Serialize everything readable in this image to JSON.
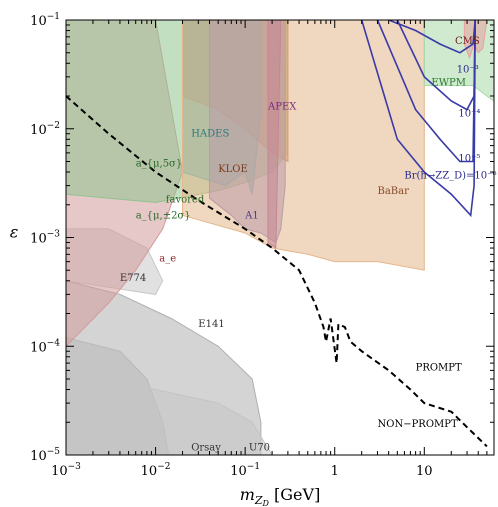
{
  "chart_data": {
    "type": "area",
    "x_scale": "log",
    "y_scale": "log",
    "xlim": [
      0.001,
      60
    ],
    "ylim": [
      1e-05,
      0.1
    ],
    "xlabel": "m_{Z_D} [GeV]",
    "xlabel_main": "m",
    "xlabel_sub": "Z",
    "xlabel_subsub": "D",
    "xlabel_unit": " [GeV]",
    "ylabel": "ε",
    "x_ticks": [
      {
        "value": 0.001,
        "base": "10",
        "exp": "−3"
      },
      {
        "value": 0.01,
        "base": "10",
        "exp": "−2"
      },
      {
        "value": 0.1,
        "base": "10",
        "exp": "−1"
      },
      {
        "value": 1,
        "base": "1",
        "exp": ""
      },
      {
        "value": 10,
        "base": "10",
        "exp": ""
      }
    ],
    "y_ticks": [
      {
        "value": 1e-05,
        "base": "10",
        "exp": "−5"
      },
      {
        "value": 0.0001,
        "base": "10",
        "exp": "−4"
      },
      {
        "value": 0.001,
        "base": "10",
        "exp": "−3"
      },
      {
        "value": 0.01,
        "base": "10",
        "exp": "−2"
      },
      {
        "value": 0.1,
        "base": "10",
        "exp": "−1"
      }
    ],
    "regions": [
      {
        "name": "E141",
        "color": "#b0b0b0",
        "points": [
          [
            0.001,
            1e-05
          ],
          [
            0.001,
            0.0004
          ],
          [
            0.004,
            0.0003
          ],
          [
            0.015,
            0.00018
          ],
          [
            0.05,
            0.0001
          ],
          [
            0.12,
            5e-05
          ],
          [
            0.15,
            2e-05
          ],
          [
            0.15,
            1e-05
          ]
        ]
      },
      {
        "name": "Orsay",
        "color": "#b8b8b8",
        "points": [
          [
            0.001,
            1e-05
          ],
          [
            0.001,
            0.00012
          ],
          [
            0.004,
            9e-05
          ],
          [
            0.008,
            5e-05
          ],
          [
            0.012,
            2e-05
          ],
          [
            0.014,
            1e-05
          ]
        ]
      },
      {
        "name": "U70",
        "color": "#c4c4c4",
        "points": [
          [
            0.001,
            1e-05
          ],
          [
            0.001,
            6e-05
          ],
          [
            0.01,
            4e-05
          ],
          [
            0.05,
            3e-05
          ],
          [
            0.12,
            2e-05
          ],
          [
            0.2,
            1e-05
          ]
        ]
      },
      {
        "name": "E774",
        "color": "#c8c8c8",
        "points": [
          [
            0.001,
            0.0004
          ],
          [
            0.001,
            0.0012
          ],
          [
            0.003,
            0.0012
          ],
          [
            0.008,
            0.0008
          ],
          [
            0.012,
            0.0004
          ],
          [
            0.01,
            0.0003
          ]
        ]
      },
      {
        "name": "a_e",
        "color": "#d49a9a",
        "points": [
          [
            0.001,
            0.0001
          ],
          [
            0.001,
            0.1
          ],
          [
            0.01,
            0.1
          ],
          [
            0.02,
            0.004
          ],
          [
            0.012,
            0.0012
          ],
          [
            0.006,
            0.0005
          ],
          [
            0.003,
            0.00025
          ]
        ]
      },
      {
        "name": "a_mu",
        "color": "#8fc48f",
        "points": [
          [
            0.001,
            0.1
          ],
          [
            0.001,
            0.0025
          ],
          [
            0.01,
            0.0021
          ],
          [
            0.05,
            0.0027
          ],
          [
            0.1,
            0.0032
          ],
          [
            0.2,
            0.004
          ],
          [
            0.3,
            0.006
          ],
          [
            0.3,
            0.1
          ]
        ]
      },
      {
        "name": "KLOE",
        "color": "#c8845a",
        "points": [
          [
            0.02,
            0.1
          ],
          [
            0.02,
            0.02
          ],
          [
            0.05,
            0.015
          ],
          [
            0.1,
            0.01
          ],
          [
            0.2,
            0.006
          ],
          [
            0.3,
            0.005
          ],
          [
            0.3,
            0.1
          ]
        ]
      },
      {
        "name": "HADES",
        "color": "#4fb8c0",
        "points": [
          [
            0.02,
            0.1
          ],
          [
            0.02,
            0.004
          ],
          [
            0.06,
            0.003
          ],
          [
            0.1,
            0.004
          ],
          [
            0.12,
            0.0025
          ],
          [
            0.15,
            0.015
          ],
          [
            0.15,
            0.1
          ]
        ]
      },
      {
        "name": "A1",
        "color": "#8a7ac8",
        "points": [
          [
            0.04,
            0.1
          ],
          [
            0.04,
            0.0023
          ],
          [
            0.07,
            0.0016
          ],
          [
            0.1,
            0.0012
          ],
          [
            0.15,
            0.0011
          ],
          [
            0.22,
            0.0009
          ],
          [
            0.25,
            0.0012
          ],
          [
            0.28,
            0.003
          ],
          [
            0.28,
            0.1
          ]
        ]
      },
      {
        "name": "APEX",
        "color": "#a04ca0",
        "points": [
          [
            0.18,
            0.1
          ],
          [
            0.18,
            0.0009
          ],
          [
            0.22,
            0.0008
          ],
          [
            0.25,
            0.1
          ]
        ]
      },
      {
        "name": "BaBar",
        "color": "#e4b68a",
        "points": [
          [
            0.02,
            0.1
          ],
          [
            0.02,
            0.0016
          ],
          [
            0.1,
            0.0011
          ],
          [
            0.2,
            0.0008
          ],
          [
            0.5,
            0.0007
          ],
          [
            1,
            0.0006
          ],
          [
            3,
            0.0006
          ],
          [
            10,
            0.0005
          ],
          [
            10,
            0.1
          ]
        ]
      },
      {
        "name": "EWPM",
        "color": "#a8d8a8",
        "points": [
          [
            10,
            0.1
          ],
          [
            10,
            0.025
          ],
          [
            20,
            0.025
          ],
          [
            35,
            0.025
          ],
          [
            50,
            0.02
          ],
          [
            60,
            0.018
          ],
          [
            60,
            0.1
          ]
        ]
      },
      {
        "name": "CMS",
        "color": "#e8a0a0",
        "points": [
          [
            28,
            0.1
          ],
          [
            28,
            0.06
          ],
          [
            32,
            0.045
          ],
          [
            36,
            0.06
          ],
          [
            40,
            0.05
          ],
          [
            45,
            0.055
          ],
          [
            50,
            0.1
          ]
        ]
      }
    ],
    "series": [
      {
        "name": "displaced-vertex-boundary",
        "color": "#000000",
        "dash": "6,4",
        "points": [
          [
            0.001,
            0.02
          ],
          [
            0.003,
            0.009
          ],
          [
            0.01,
            0.004
          ],
          [
            0.03,
            0.0022
          ],
          [
            0.1,
            0.0012
          ],
          [
            0.2,
            0.0008
          ],
          [
            0.4,
            0.0005
          ],
          [
            0.6,
            0.00025
          ],
          [
            0.75,
            0.00015
          ],
          [
            0.8,
            0.00011
          ],
          [
            0.9,
            0.00018
          ],
          [
            1.05,
            7e-05
          ],
          [
            1.1,
            0.00016
          ],
          [
            1.3,
            0.00015
          ],
          [
            1.5,
            0.00011
          ],
          [
            2,
            9e-05
          ],
          [
            4,
            6e-05
          ],
          [
            7,
            4e-05
          ],
          [
            10,
            3e-05
          ],
          [
            20,
            2.5e-05
          ],
          [
            30,
            1.8e-05
          ],
          [
            50,
            1.2e-05
          ]
        ]
      },
      {
        "name": "Br(h→Z Z_D)=10^{-3}",
        "color": "#3a3aa8",
        "points": [
          [
            4,
            0.1
          ],
          [
            8,
            0.08
          ],
          [
            15,
            0.06
          ],
          [
            25,
            0.05
          ],
          [
            35,
            0.06
          ],
          [
            37,
            0.1
          ]
        ]
      },
      {
        "name": "Br(h→Z Z_D)=10^{-4}",
        "color": "#3a3aa8",
        "points": [
          [
            5,
            0.1
          ],
          [
            10,
            0.03
          ],
          [
            20,
            0.018
          ],
          [
            30,
            0.015
          ],
          [
            36,
            0.02
          ],
          [
            37,
            0.1
          ]
        ]
      },
      {
        "name": "Br(h→Z Z_D)=10^{-5}",
        "color": "#3a3aa8",
        "points": [
          [
            3,
            0.1
          ],
          [
            8,
            0.015
          ],
          [
            15,
            0.008
          ],
          [
            25,
            0.005
          ],
          [
            35,
            0.005
          ],
          [
            37,
            0.1
          ]
        ]
      },
      {
        "name": "Br(h→Z Z_D)=10^{-6}",
        "color": "#3a3aa8",
        "points": [
          [
            2,
            0.1
          ],
          [
            5,
            0.008
          ],
          [
            10,
            0.004
          ],
          [
            20,
            0.0025
          ],
          [
            33,
            0.0016
          ],
          [
            36,
            0.003
          ],
          [
            37,
            0.1
          ]
        ]
      }
    ],
    "annotations": [
      {
        "text": "CMS",
        "x": 22,
        "y": 0.06,
        "color": "#6a1a1a"
      },
      {
        "text": "10⁻³",
        "x": 23,
        "y": 0.033,
        "color": "#2a2a8a"
      },
      {
        "text": "EWPM",
        "x": 12,
        "y": 0.025,
        "color": "#2a7a2a"
      },
      {
        "text": "10⁻⁴",
        "x": 24,
        "y": 0.013,
        "color": "#2a2a8a"
      },
      {
        "text": "APEX",
        "x": 0.18,
        "y": 0.015,
        "color": "#7a2a7a"
      },
      {
        "text": "HADES",
        "x": 0.025,
        "y": 0.0085,
        "color": "#2a7a7a"
      },
      {
        "text": "10⁻⁵",
        "x": 24,
        "y": 0.005,
        "color": "#2a2a8a"
      },
      {
        "text": "a_{μ,5σ}",
        "x": 0.006,
        "y": 0.0045,
        "color": "#2a6a2a"
      },
      {
        "text": "KLOE",
        "x": 0.05,
        "y": 0.004,
        "color": "#7a3a1a"
      },
      {
        "text": "BaBar",
        "x": 3,
        "y": 0.0025,
        "color": "#8a4a2a"
      },
      {
        "text": "Br(h→ZZ_D)=10⁻⁶",
        "x": 6,
        "y": 0.0035,
        "color": "#2a2a8a"
      },
      {
        "text": "favored",
        "x": 0.013,
        "y": 0.0021,
        "color": "#2a6a2a"
      },
      {
        "text": "a_{μ,±2σ}",
        "x": 0.006,
        "y": 0.0015,
        "color": "#2a6a2a"
      },
      {
        "text": "A1",
        "x": 0.1,
        "y": 0.0015,
        "color": "#4a3a8a"
      },
      {
        "text": "a_e",
        "x": 0.011,
        "y": 0.0006,
        "color": "#8a2a2a"
      },
      {
        "text": "E774",
        "x": 0.004,
        "y": 0.0004,
        "color": "#333333"
      },
      {
        "text": "E141",
        "x": 0.03,
        "y": 0.00015,
        "color": "#333333"
      },
      {
        "text": "PROMPT",
        "x": 8,
        "y": 6e-05,
        "color": "#000000"
      },
      {
        "text": "NON−PROMPT",
        "x": 3,
        "y": 1.8e-05,
        "color": "#000000"
      },
      {
        "text": "Orsay",
        "x": 0.025,
        "y": 1.1e-05,
        "color": "#333333"
      },
      {
        "text": "U70",
        "x": 0.11,
        "y": 1.1e-05,
        "color": "#333333"
      }
    ]
  }
}
